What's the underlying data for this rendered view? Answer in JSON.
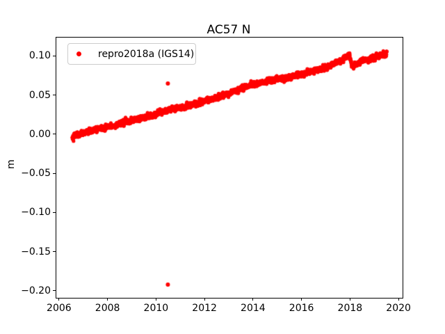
{
  "chart_data": {
    "type": "scatter",
    "title": "AC57 N",
    "xlabel": "",
    "ylabel": "m",
    "grid": false,
    "legend_position": "upper left",
    "legend": [
      {
        "label": "repro2018a (IGS14)",
        "color": "#ff0000",
        "marker": "dot"
      }
    ],
    "xlim": [
      2005.86,
      2020.14
    ],
    "ylim": [
      -0.208,
      0.1242
    ],
    "x_ticks": [
      2006,
      2008,
      2010,
      2012,
      2014,
      2016,
      2018,
      2020
    ],
    "x_tick_labels": [
      "2006",
      "2008",
      "2010",
      "2012",
      "2014",
      "2016",
      "2018",
      "2020"
    ],
    "y_ticks": [
      -0.2,
      -0.15,
      -0.1,
      -0.05,
      0.0,
      0.05,
      0.1
    ],
    "y_tick_labels": [
      "−0.20",
      "−0.15",
      "−0.10",
      "−0.05",
      "0.00",
      "0.05",
      "0.10"
    ],
    "series": [
      {
        "name": "repro2018a (IGS14)",
        "color": "#ff0000",
        "marker": "dot",
        "marker_radius_px": 2.6,
        "start": 2006.52,
        "end": 2019.49,
        "step": 0.0055,
        "noise_sigma": 0.0018,
        "trend_anchors": [
          [
            2006.52,
            -0.002
          ],
          [
            2007.0,
            0.0025
          ],
          [
            2007.5,
            0.0065
          ],
          [
            2008.0,
            0.0105
          ],
          [
            2008.5,
            0.0145
          ],
          [
            2009.0,
            0.0185
          ],
          [
            2009.5,
            0.0225
          ],
          [
            2010.0,
            0.027
          ],
          [
            2010.5,
            0.031
          ],
          [
            2011.0,
            0.035
          ],
          [
            2011.5,
            0.039
          ],
          [
            2012.0,
            0.0435
          ],
          [
            2012.5,
            0.048
          ],
          [
            2013.0,
            0.0535
          ],
          [
            2013.5,
            0.059
          ],
          [
            2014.0,
            0.065
          ],
          [
            2014.3,
            0.0668
          ],
          [
            2014.7,
            0.069
          ],
          [
            2015.0,
            0.071
          ],
          [
            2015.5,
            0.074
          ],
          [
            2016.0,
            0.078
          ],
          [
            2016.5,
            0.082
          ],
          [
            2017.0,
            0.0865
          ],
          [
            2017.4,
            0.092
          ],
          [
            2017.7,
            0.097
          ],
          [
            2017.95,
            0.101
          ],
          [
            2018.05,
            0.0885
          ],
          [
            2018.15,
            0.089
          ],
          [
            2018.4,
            0.093
          ],
          [
            2018.8,
            0.097
          ],
          [
            2019.1,
            0.1
          ],
          [
            2019.49,
            0.103
          ]
        ],
        "outliers": [
          [
            2010.46,
            0.0656
          ],
          [
            2010.46,
            -0.1911
          ]
        ]
      }
    ]
  },
  "axes_colors": {
    "spine": "#000000",
    "tick": "#000000",
    "text": "#000000"
  }
}
